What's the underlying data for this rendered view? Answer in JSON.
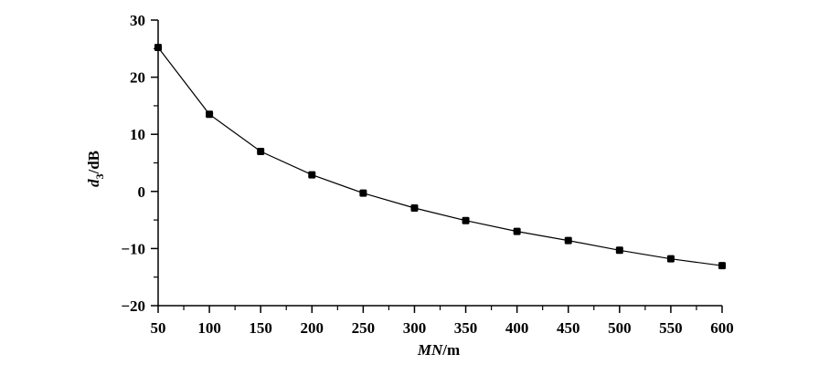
{
  "chart_data": {
    "type": "line",
    "title": "",
    "xlabel": {
      "main": "MN",
      "unit": "/m"
    },
    "ylabel": {
      "main": "d",
      "sub": "3",
      "unit": "/dB"
    },
    "xlim": [
      50,
      600
    ],
    "ylim": [
      -20,
      30
    ],
    "x_ticks": [
      "50",
      "100",
      "150",
      "200",
      "250",
      "300",
      "350",
      "400",
      "450",
      "500",
      "550",
      "600"
    ],
    "y_ticks": [
      "−20",
      "−10",
      "0",
      "10",
      "20",
      "30"
    ],
    "x_tick_values": [
      50,
      100,
      150,
      200,
      250,
      300,
      350,
      400,
      450,
      500,
      550,
      600
    ],
    "y_tick_values": [
      -20,
      -10,
      0,
      10,
      20,
      30
    ],
    "grid": false,
    "series": [
      {
        "x": [
          50,
          100,
          150,
          200,
          250,
          300,
          350,
          400,
          450,
          500,
          550,
          600
        ],
        "y": [
          25.2,
          13.5,
          7.0,
          2.9,
          -0.3,
          -2.9,
          -5.1,
          -7.0,
          -8.6,
          -10.3,
          -11.8,
          -13.0
        ],
        "marker": "square",
        "color": "#000000"
      }
    ]
  }
}
